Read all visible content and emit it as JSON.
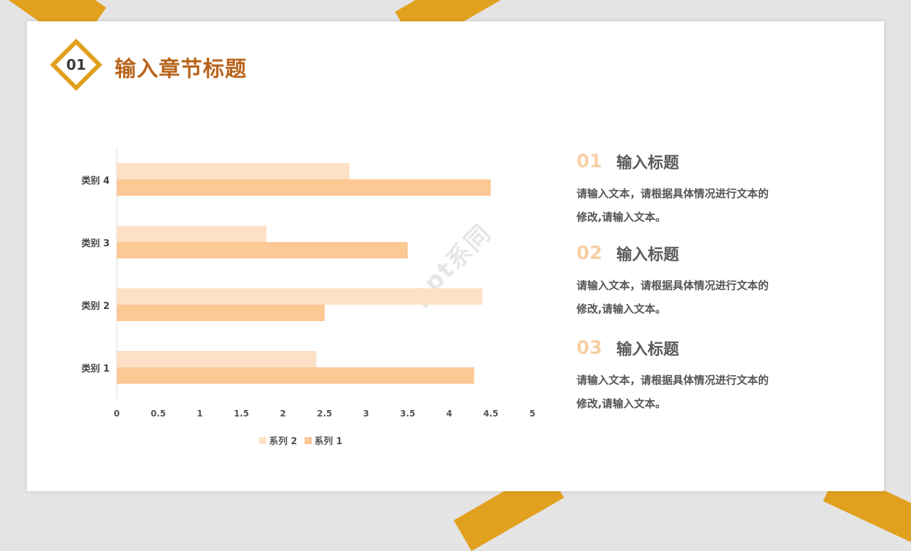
{
  "header": {
    "number": "01",
    "title": "输入章节标题"
  },
  "watermark": "ppt系同",
  "colors": {
    "accent": "#e2a01f",
    "title": "#b8641a",
    "series_2": "#fde0c6",
    "series_1": "#fcc894"
  },
  "chart_data": {
    "type": "bar",
    "orientation": "horizontal",
    "categories": [
      "类别 1",
      "类别 2",
      "类别 3",
      "类别 4"
    ],
    "series": [
      {
        "name": "系列 2",
        "values": [
          2.4,
          4.4,
          1.8,
          2.8
        ]
      },
      {
        "name": "系列 1",
        "values": [
          4.3,
          2.5,
          3.5,
          4.5
        ]
      }
    ],
    "xlim": [
      0,
      5
    ],
    "x_ticks": [
      "0",
      "0.5",
      "1",
      "1.5",
      "2",
      "2.5",
      "3",
      "3.5",
      "4",
      "4.5",
      "5"
    ],
    "legend": "bottom",
    "grid": false
  },
  "items": [
    {
      "num": "01",
      "title": "输入标题",
      "text": "请输入文本，请根据具体情况进行文本的修改,请输入文本。"
    },
    {
      "num": "02",
      "title": "输入标题",
      "text": "请输入文本，请根据具体情况进行文本的修改,请输入文本。"
    },
    {
      "num": "03",
      "title": "输入标题",
      "text": "请输入文本，请根据具体情况进行文本的修改,请输入文本。"
    }
  ]
}
